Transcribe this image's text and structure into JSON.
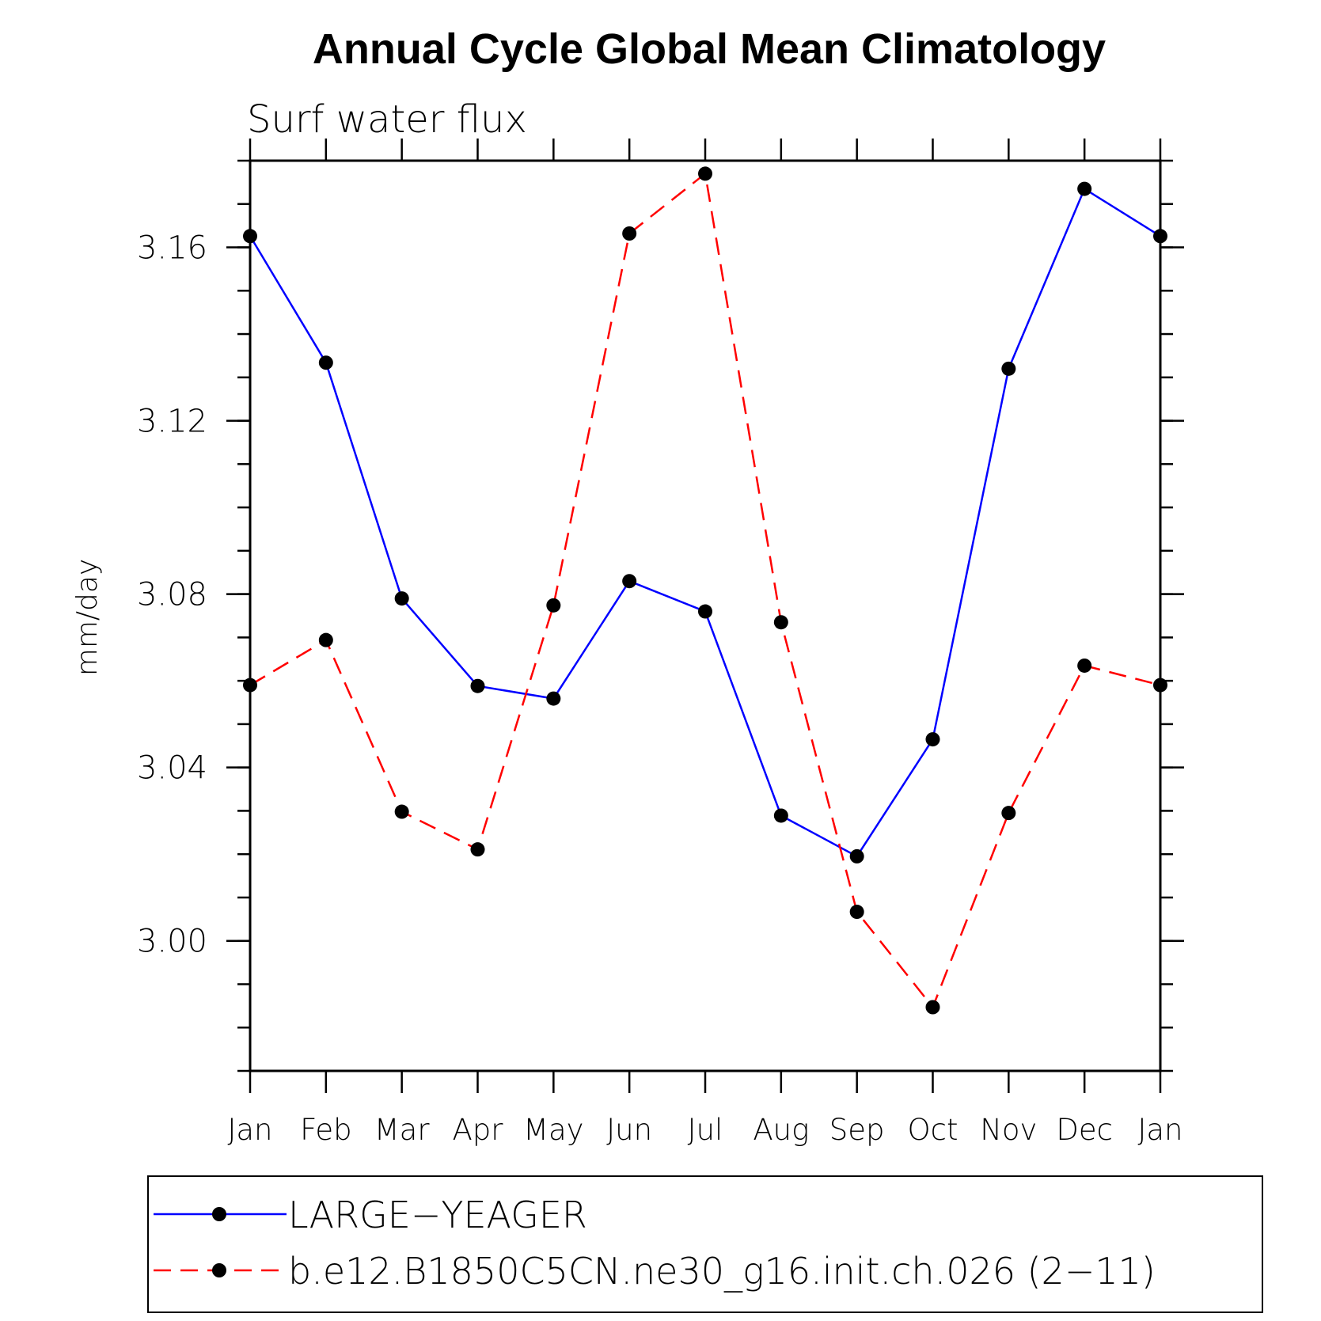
{
  "chart_data": {
    "type": "line",
    "title": "Annual Cycle Global Mean Climatology",
    "subtitle": "Surf water flux",
    "xlabel": "",
    "ylabel": "mm/day",
    "categories": [
      "Jan",
      "Feb",
      "Mar",
      "Apr",
      "May",
      "Jun",
      "Jul",
      "Aug",
      "Sep",
      "Oct",
      "Nov",
      "Dec",
      "Jan"
    ],
    "ylim": [
      2.97,
      3.18
    ],
    "yticks": [
      3.0,
      3.04,
      3.08,
      3.12,
      3.16
    ],
    "ytick_labels": [
      "3.00",
      "3.04",
      "3.08",
      "3.12",
      "3.16"
    ],
    "y_minor_step": 0.01,
    "grid": false,
    "legend_position": "bottom",
    "series": [
      {
        "name": "LARGE−YEAGER",
        "color": "#0000ff",
        "dash": "solid",
        "marker": "filled-circle",
        "values": [
          3.1626,
          3.1334,
          3.079,
          3.0588,
          3.0559,
          3.083,
          3.076,
          3.0289,
          3.0195,
          3.0465,
          3.132,
          3.1735,
          3.1626
        ]
      },
      {
        "name": "b.e12.B1850C5CN.ne30_g16.init.ch.026 (2−11)",
        "color": "#ff0000",
        "dash": "dashed",
        "marker": "filled-circle",
        "values": [
          3.059,
          3.0694,
          3.0298,
          3.0211,
          3.0774,
          3.1632,
          3.177,
          3.0735,
          3.0067,
          2.9847,
          3.0295,
          3.0635,
          3.059
        ]
      }
    ]
  }
}
